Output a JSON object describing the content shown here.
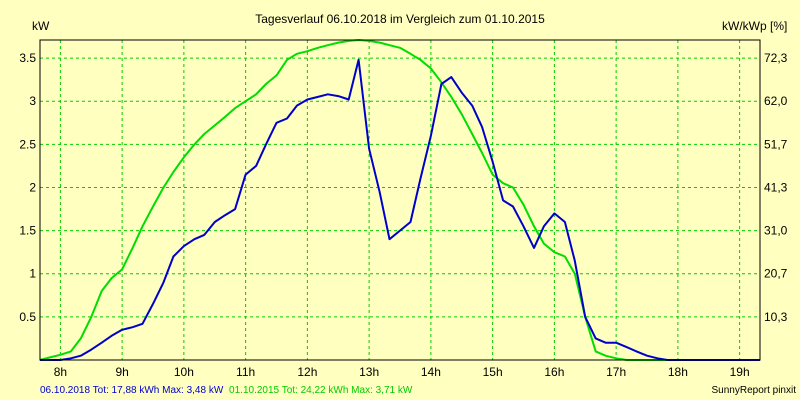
{
  "chart_data": {
    "type": "line",
    "title": "Tagesverlauf 06.10.2018 im Vergleich zum 01.10.2015",
    "ylabel_left": "kW",
    "ylabel_right": "kW/kWp [%]",
    "x_tick_labels": [
      "8h",
      "9h",
      "10h",
      "11h",
      "12h",
      "13h",
      "14h",
      "15h",
      "16h",
      "17h",
      "18h",
      "19h"
    ],
    "x_tick_values": [
      8,
      9,
      10,
      11,
      12,
      13,
      14,
      15,
      16,
      17,
      18,
      19
    ],
    "xlim": [
      7.67,
      19.33
    ],
    "ylim": [
      0,
      3.71
    ],
    "y_ticks": [
      0.5,
      1,
      1.5,
      2,
      2.5,
      3,
      3.5
    ],
    "y_tick_labels": [
      "0.5",
      "1",
      "1.5",
      "2",
      "2.5",
      "3",
      "3.5"
    ],
    "y_right_ticks": [
      0.5,
      1,
      1.5,
      2,
      2.5,
      3,
      3.5
    ],
    "y_right_tick_labels": [
      "10,3",
      "20,7",
      "31,0",
      "41,3",
      "51,7",
      "62,0",
      "72,3"
    ],
    "grid": true,
    "series": [
      {
        "name": "06.10.2018",
        "color": "#0000CC",
        "x": [
          7.67,
          7.83,
          8.0,
          8.17,
          8.33,
          8.5,
          8.67,
          8.83,
          9.0,
          9.17,
          9.33,
          9.5,
          9.67,
          9.83,
          10.0,
          10.17,
          10.33,
          10.5,
          10.67,
          10.83,
          11.0,
          11.17,
          11.33,
          11.5,
          11.67,
          11.83,
          12.0,
          12.17,
          12.33,
          12.5,
          12.67,
          12.83,
          13.0,
          13.17,
          13.33,
          13.5,
          13.67,
          13.83,
          14.0,
          14.17,
          14.33,
          14.5,
          14.67,
          14.83,
          15.0,
          15.17,
          15.33,
          15.5,
          15.67,
          15.83,
          16.0,
          16.17,
          16.33,
          16.5,
          16.67,
          16.83,
          17.0,
          17.17,
          17.33,
          17.5,
          17.67,
          17.83,
          18.0,
          18.17,
          18.33,
          18.5,
          18.67,
          18.83,
          19.0,
          19.17,
          19.33
        ],
        "y": [
          0,
          0,
          0,
          0.02,
          0.05,
          0.12,
          0.2,
          0.28,
          0.35,
          0.38,
          0.42,
          0.65,
          0.9,
          1.2,
          1.32,
          1.4,
          1.45,
          1.6,
          1.68,
          1.75,
          2.15,
          2.25,
          2.5,
          2.75,
          2.8,
          2.95,
          3.02,
          3.05,
          3.08,
          3.06,
          3.02,
          3.48,
          2.45,
          1.95,
          1.4,
          1.5,
          1.6,
          2.1,
          2.6,
          3.2,
          3.28,
          3.1,
          2.95,
          2.7,
          2.3,
          1.85,
          1.78,
          1.55,
          1.3,
          1.55,
          1.7,
          1.6,
          1.15,
          0.5,
          0.25,
          0.2,
          0.2,
          0.15,
          0.1,
          0.05,
          0.02,
          0,
          0,
          0,
          0,
          0,
          0,
          0,
          0,
          0,
          0
        ]
      },
      {
        "name": "01.10.2015",
        "color": "#00DD00",
        "x": [
          7.67,
          7.83,
          8.0,
          8.17,
          8.33,
          8.5,
          8.67,
          8.83,
          9.0,
          9.17,
          9.33,
          9.5,
          9.67,
          9.83,
          10.0,
          10.17,
          10.33,
          10.5,
          10.67,
          10.83,
          11.0,
          11.17,
          11.33,
          11.5,
          11.67,
          11.83,
          12.0,
          12.17,
          12.33,
          12.5,
          12.67,
          12.83,
          13.0,
          13.17,
          13.33,
          13.5,
          13.67,
          13.83,
          14.0,
          14.17,
          14.33,
          14.5,
          14.67,
          14.83,
          15.0,
          15.17,
          15.33,
          15.5,
          15.67,
          15.83,
          16.0,
          16.17,
          16.33,
          16.5,
          16.67,
          16.83,
          17.0,
          17.17,
          17.33,
          17.5,
          17.67,
          17.83,
          18.0,
          18.17,
          18.33,
          18.5,
          18.67,
          18.83,
          19.0,
          19.17,
          19.33
        ],
        "y": [
          0,
          0.03,
          0.06,
          0.1,
          0.25,
          0.5,
          0.8,
          0.95,
          1.05,
          1.3,
          1.55,
          1.78,
          2.0,
          2.18,
          2.35,
          2.5,
          2.62,
          2.72,
          2.82,
          2.92,
          3.0,
          3.08,
          3.2,
          3.3,
          3.48,
          3.55,
          3.58,
          3.62,
          3.65,
          3.68,
          3.7,
          3.71,
          3.7,
          3.68,
          3.65,
          3.62,
          3.55,
          3.48,
          3.38,
          3.22,
          3.05,
          2.85,
          2.62,
          2.4,
          2.15,
          2.05,
          2.0,
          1.8,
          1.55,
          1.35,
          1.25,
          1.2,
          1.0,
          0.5,
          0.1,
          0.05,
          0.02,
          0,
          0,
          0,
          0,
          0,
          0,
          0,
          0,
          0,
          0,
          0,
          0,
          0,
          0
        ]
      }
    ],
    "footer": {
      "s1_text": "06.10.2018 Tot: 17,88 kWh Max: 3,48 kW",
      "s2_text": "01.10.2015 Tot: 24,22 kWh Max: 3,71 kW",
      "credit": "SunnyReport pinxit"
    }
  }
}
